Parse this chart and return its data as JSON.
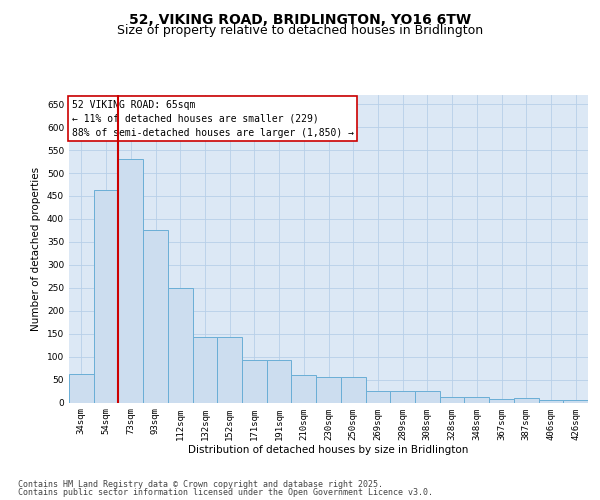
{
  "title_line1": "52, VIKING ROAD, BRIDLINGTON, YO16 6TW",
  "title_line2": "Size of property relative to detached houses in Bridlington",
  "xlabel": "Distribution of detached houses by size in Bridlington",
  "ylabel": "Number of detached properties",
  "categories": [
    "34sqm",
    "54sqm",
    "73sqm",
    "93sqm",
    "112sqm",
    "132sqm",
    "152sqm",
    "171sqm",
    "191sqm",
    "210sqm",
    "230sqm",
    "250sqm",
    "269sqm",
    "289sqm",
    "308sqm",
    "328sqm",
    "348sqm",
    "367sqm",
    "387sqm",
    "406sqm",
    "426sqm"
  ],
  "values": [
    62,
    462,
    530,
    375,
    250,
    142,
    142,
    92,
    92,
    60,
    55,
    55,
    25,
    25,
    25,
    12,
    12,
    7,
    10,
    6,
    5
  ],
  "bar_color": "#ccddef",
  "bar_edge_color": "#6aaed6",
  "grid_color": "#b8cfe8",
  "background_color": "#dce8f5",
  "annotation_box_text": "52 VIKING ROAD: 65sqm\n← 11% of detached houses are smaller (229)\n88% of semi-detached houses are larger (1,850) →",
  "annotation_box_color": "#ffffff",
  "annotation_box_edge_color": "#cc0000",
  "vline_x": 1.5,
  "vline_color": "#cc0000",
  "ylim": [
    0,
    670
  ],
  "yticks": [
    0,
    50,
    100,
    150,
    200,
    250,
    300,
    350,
    400,
    450,
    500,
    550,
    600,
    650
  ],
  "footnote_line1": "Contains HM Land Registry data © Crown copyright and database right 2025.",
  "footnote_line2": "Contains public sector information licensed under the Open Government Licence v3.0.",
  "title_fontsize": 10,
  "subtitle_fontsize": 9,
  "axis_label_fontsize": 7.5,
  "tick_fontsize": 6.5,
  "annotation_fontsize": 7,
  "footnote_fontsize": 6
}
